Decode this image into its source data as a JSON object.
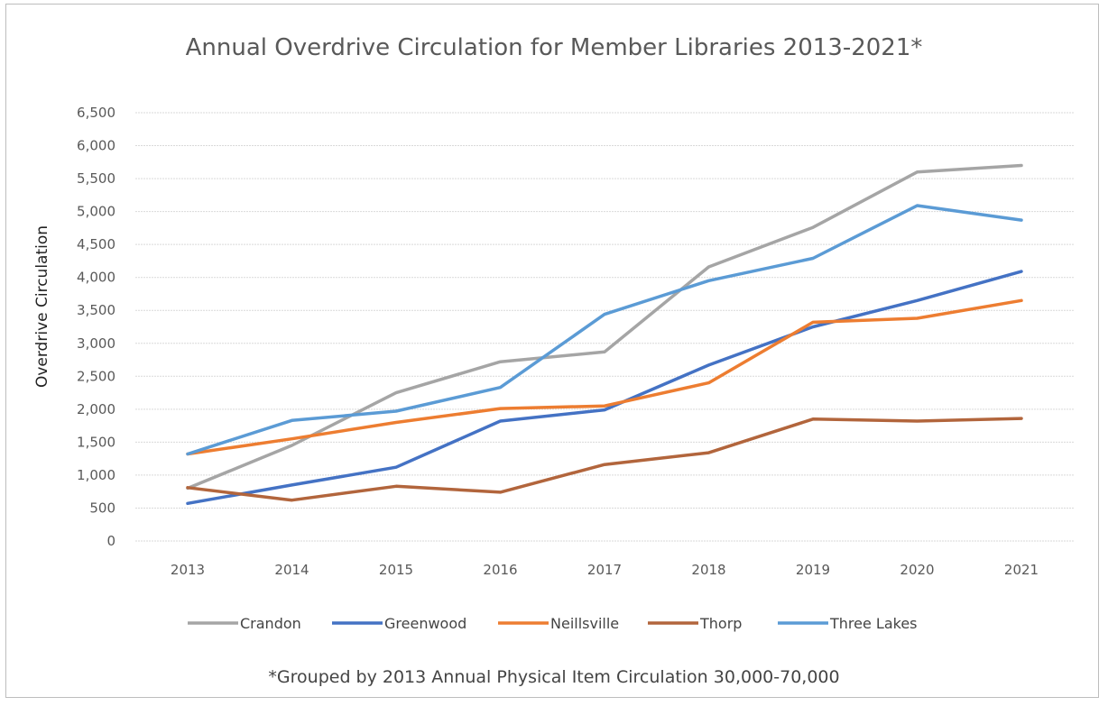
{
  "chart_data": {
    "type": "line",
    "title": "Annual Overdrive Circulation for Member Libraries 2013-2021*",
    "ylabel": "Overdrive Circulation",
    "xlabel": "",
    "footnote": "*Grouped by 2013 Annual Physical Item Circulation  30,000-70,000",
    "categories": [
      "2013",
      "2014",
      "2015",
      "2016",
      "2017",
      "2018",
      "2019",
      "2020",
      "2021"
    ],
    "ylim": [
      0,
      6500
    ],
    "yticks": [
      0,
      500,
      1000,
      1500,
      2000,
      2500,
      3000,
      3500,
      4000,
      4500,
      5000,
      5500,
      6000,
      6500
    ],
    "ytick_labels": [
      "0",
      "500",
      "1,000",
      "1,500",
      "2,000",
      "2,500",
      "3,000",
      "3,500",
      "4,000",
      "4,500",
      "5,000",
      "5,500",
      "6,000",
      "6,500"
    ],
    "grid": true,
    "legend_position": "bottom",
    "series": [
      {
        "name": "Crandon",
        "color": "#a5a5a5",
        "values": [
          800,
          1450,
          2250,
          2720,
          2870,
          4160,
          4760,
          5600,
          5700
        ]
      },
      {
        "name": "Greenwood",
        "color": "#4472c4",
        "values": [
          570,
          850,
          1120,
          1820,
          1990,
          2670,
          3250,
          3650,
          4090
        ]
      },
      {
        "name": "Neillsville",
        "color": "#ed7d31",
        "values": [
          1320,
          1550,
          1800,
          2010,
          2050,
          2400,
          3320,
          3380,
          3650
        ]
      },
      {
        "name": "Thorp",
        "color": "#b2653c",
        "values": [
          810,
          620,
          830,
          740,
          1160,
          1340,
          1850,
          1820,
          1860
        ]
      },
      {
        "name": "Three Lakes",
        "color": "#5b9bd5",
        "values": [
          1320,
          1830,
          1970,
          2330,
          3440,
          3950,
          4290,
          5090,
          4870
        ]
      }
    ]
  }
}
